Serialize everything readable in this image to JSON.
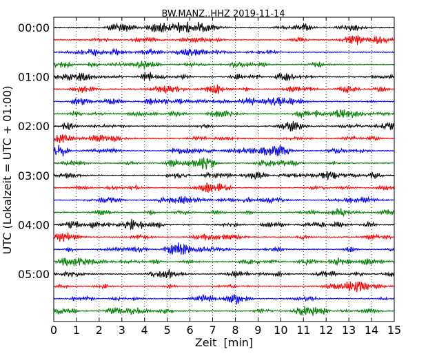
{
  "chart_data": {
    "type": "line",
    "title": "BW.MANZ..HHZ 2019-11-14",
    "xlabel": "Zeit  [min]",
    "ylabel": "UTC (Lokalzeit = UTC + 01:00)",
    "xlim": [
      0,
      15
    ],
    "x_ticks": [
      "0",
      "1",
      "2",
      "3",
      "4",
      "5",
      "6",
      "7",
      "8",
      "9",
      "10",
      "11",
      "12",
      "13",
      "14",
      "15"
    ],
    "y_tick_labels": [
      "00:00",
      "01:00",
      "02:00",
      "03:00",
      "04:00",
      "05:00"
    ],
    "grid": "vertical dotted lines at every minute",
    "trace_rows": 24,
    "row_interval": "15 min",
    "trace_colors": [
      "#000000",
      "#ff0000",
      "#0000ff",
      "#007f00"
    ]
  }
}
